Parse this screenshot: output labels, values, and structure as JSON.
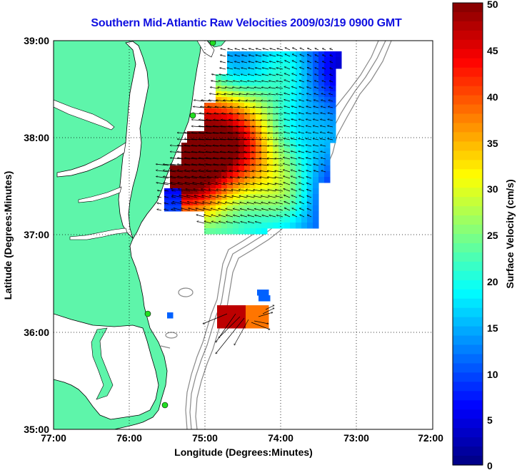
{
  "map": {
    "title": "Southern Mid-Atlantic Raw Velocities 2009/03/19 0900 GMT",
    "xlabel": "Longitude (Degrees:Minutes)",
    "ylabel": "Latitude (Degrees:Minutes)",
    "x_ticks": [
      "77:00",
      "76:00",
      "75:00",
      "74:00",
      "73:00",
      "72:00"
    ],
    "y_ticks": [
      "39:00",
      "38:00",
      "37:00",
      "36:00",
      "35:00"
    ],
    "lon_range": [
      -77,
      -72
    ],
    "lat_range": [
      35,
      39
    ],
    "grid": true
  },
  "colorbar": {
    "label": "Surface Velocity (cm/s)",
    "ticks": [
      "50",
      "45",
      "40",
      "35",
      "30",
      "25",
      "20",
      "15",
      "10",
      "5",
      "0"
    ],
    "min": 0,
    "max": 50,
    "levels": 50
  },
  "colors": {
    "land": "#5ef5aa",
    "title": "#1010e0",
    "site_marker": "#22dd22",
    "coastline": "#000000",
    "bathymetry": "#888888"
  }
}
